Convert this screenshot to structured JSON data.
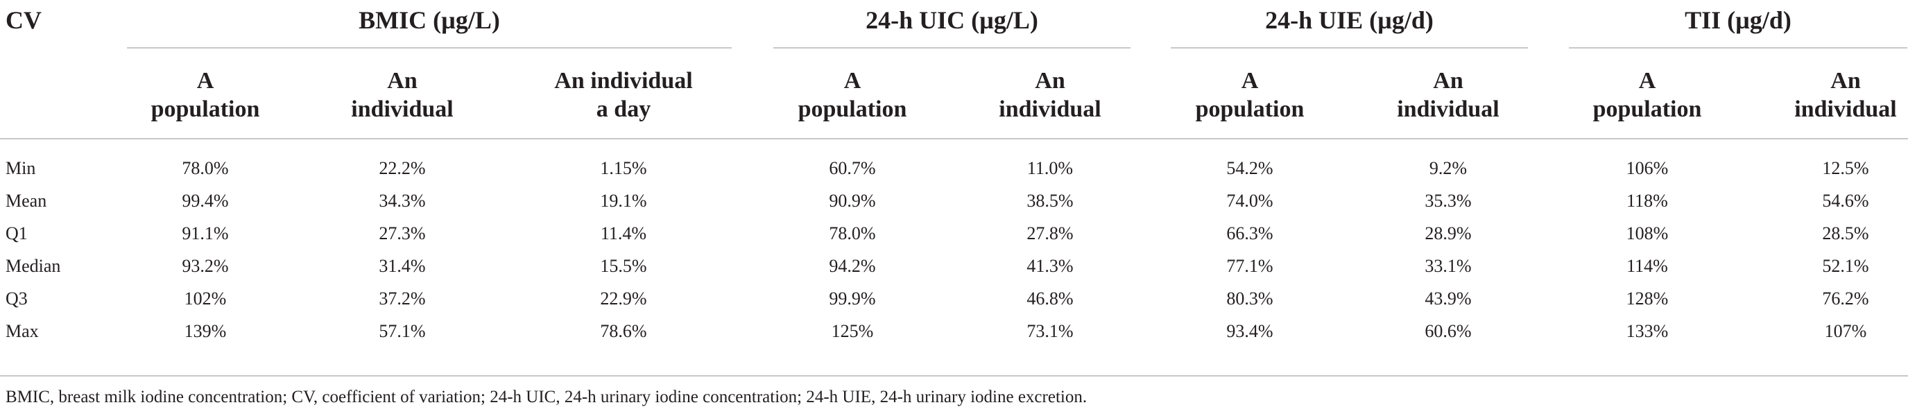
{
  "table": {
    "row_header": "CV",
    "groups": [
      {
        "title": "BMIC (µg/L)",
        "subheaders": [
          [
            "A",
            "population"
          ],
          [
            "An",
            "individual"
          ],
          [
            "An individual",
            "a day"
          ]
        ]
      },
      {
        "title": "24-h UIC (µg/L)",
        "subheaders": [
          [
            "A",
            "population"
          ],
          [
            "An",
            "individual"
          ]
        ]
      },
      {
        "title": "24-h UIE (µg/d)",
        "subheaders": [
          [
            "A",
            "population"
          ],
          [
            "An",
            "individual"
          ]
        ]
      },
      {
        "title": "TII (µg/d)",
        "subheaders": [
          [
            "A",
            "population"
          ],
          [
            "An",
            "individual"
          ]
        ]
      }
    ],
    "rows": [
      {
        "label": "Min",
        "values": [
          "78.0%",
          "22.2%",
          "1.15%",
          "60.7%",
          "11.0%",
          "54.2%",
          "9.2%",
          "106%",
          "12.5%"
        ]
      },
      {
        "label": "Mean",
        "values": [
          "99.4%",
          "34.3%",
          "19.1%",
          "90.9%",
          "38.5%",
          "74.0%",
          "35.3%",
          "118%",
          "54.6%"
        ]
      },
      {
        "label": "Q1",
        "values": [
          "91.1%",
          "27.3%",
          "11.4%",
          "78.0%",
          "27.8%",
          "66.3%",
          "28.9%",
          "108%",
          "28.5%"
        ]
      },
      {
        "label": "Median",
        "values": [
          "93.2%",
          "31.4%",
          "15.5%",
          "94.2%",
          "41.3%",
          "77.1%",
          "33.1%",
          "114%",
          "52.1%"
        ]
      },
      {
        "label": "Q3",
        "values": [
          "102%",
          "37.2%",
          "22.9%",
          "99.9%",
          "46.8%",
          "80.3%",
          "43.9%",
          "128%",
          "76.2%"
        ]
      },
      {
        "label": "Max",
        "values": [
          "139%",
          "57.1%",
          "78.6%",
          "125%",
          "73.1%",
          "93.4%",
          "60.6%",
          "133%",
          "107%"
        ]
      }
    ],
    "footnote": "BMIC, breast milk iodine concentration; CV, coefficient of variation; 24-h UIC, 24-h urinary iodine concentration; 24-h UIE, 24-h urinary iodine excretion."
  }
}
